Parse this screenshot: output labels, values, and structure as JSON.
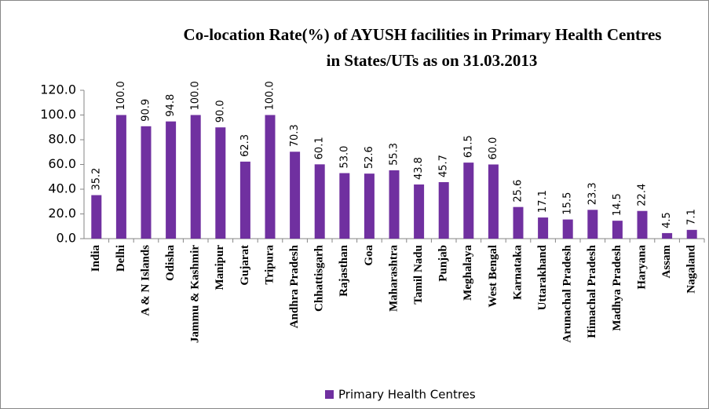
{
  "chart_data": {
    "type": "bar",
    "title": [
      "Co-location Rate(%) of AYUSH facilities in  Primary Health Centres",
      "in States/UTs as on 31.03.2013"
    ],
    "categories": [
      "India",
      "Delhi",
      "A & N Islands",
      "Odisha",
      "Jammu & Kashmir",
      "Manipur",
      "Gujarat",
      "Tripura",
      "Andhra Pradesh",
      "Chhattisgarh",
      "Rajasthan",
      "Goa",
      "Maharashtra",
      "Tamil Nadu",
      "Punjab",
      "Meghalaya",
      "West Bengal",
      "Karnataka",
      "Uttarakhand",
      "Arunachal Pradesh",
      "Himachal Pradesh",
      "Madhya Pradesh",
      "Haryana",
      "Assam",
      "Nagaland"
    ],
    "series": [
      {
        "name": "Primary Health Centres",
        "color": "#7030a0",
        "values": [
          35.2,
          100,
          90.9,
          94.8,
          100,
          90,
          62.3,
          100,
          70.3,
          60.1,
          53,
          52.6,
          55.3,
          43.8,
          45.7,
          61.5,
          60,
          25.6,
          17.1,
          15.5,
          23.3,
          14.5,
          22.4,
          4.5,
          7.1
        ],
        "value_labels": [
          "35.2",
          "100.0",
          "90.9",
          "94.8",
          "100.0",
          "90.0",
          "62.3",
          "100.0",
          "70.3",
          "60.1",
          "53.0",
          "52.6",
          "55.3",
          "43.8",
          "45.7",
          "61.5",
          "60.0",
          "25.6",
          "17.1",
          "15.5",
          "23.3",
          "14.5",
          "22.4",
          "4.5",
          "7.1"
        ]
      }
    ],
    "ylim": [
      0,
      120
    ],
    "yticks": [
      {
        "value": 0,
        "label": "0.0"
      },
      {
        "value": 20,
        "label": "20.0"
      },
      {
        "value": 40,
        "label": "40.0"
      },
      {
        "value": 60,
        "label": "60.0"
      },
      {
        "value": 80,
        "label": "80.0"
      },
      {
        "value": 100,
        "label": "100.0"
      },
      {
        "value": 120,
        "label": "120.0"
      }
    ],
    "legend": "bottom"
  }
}
